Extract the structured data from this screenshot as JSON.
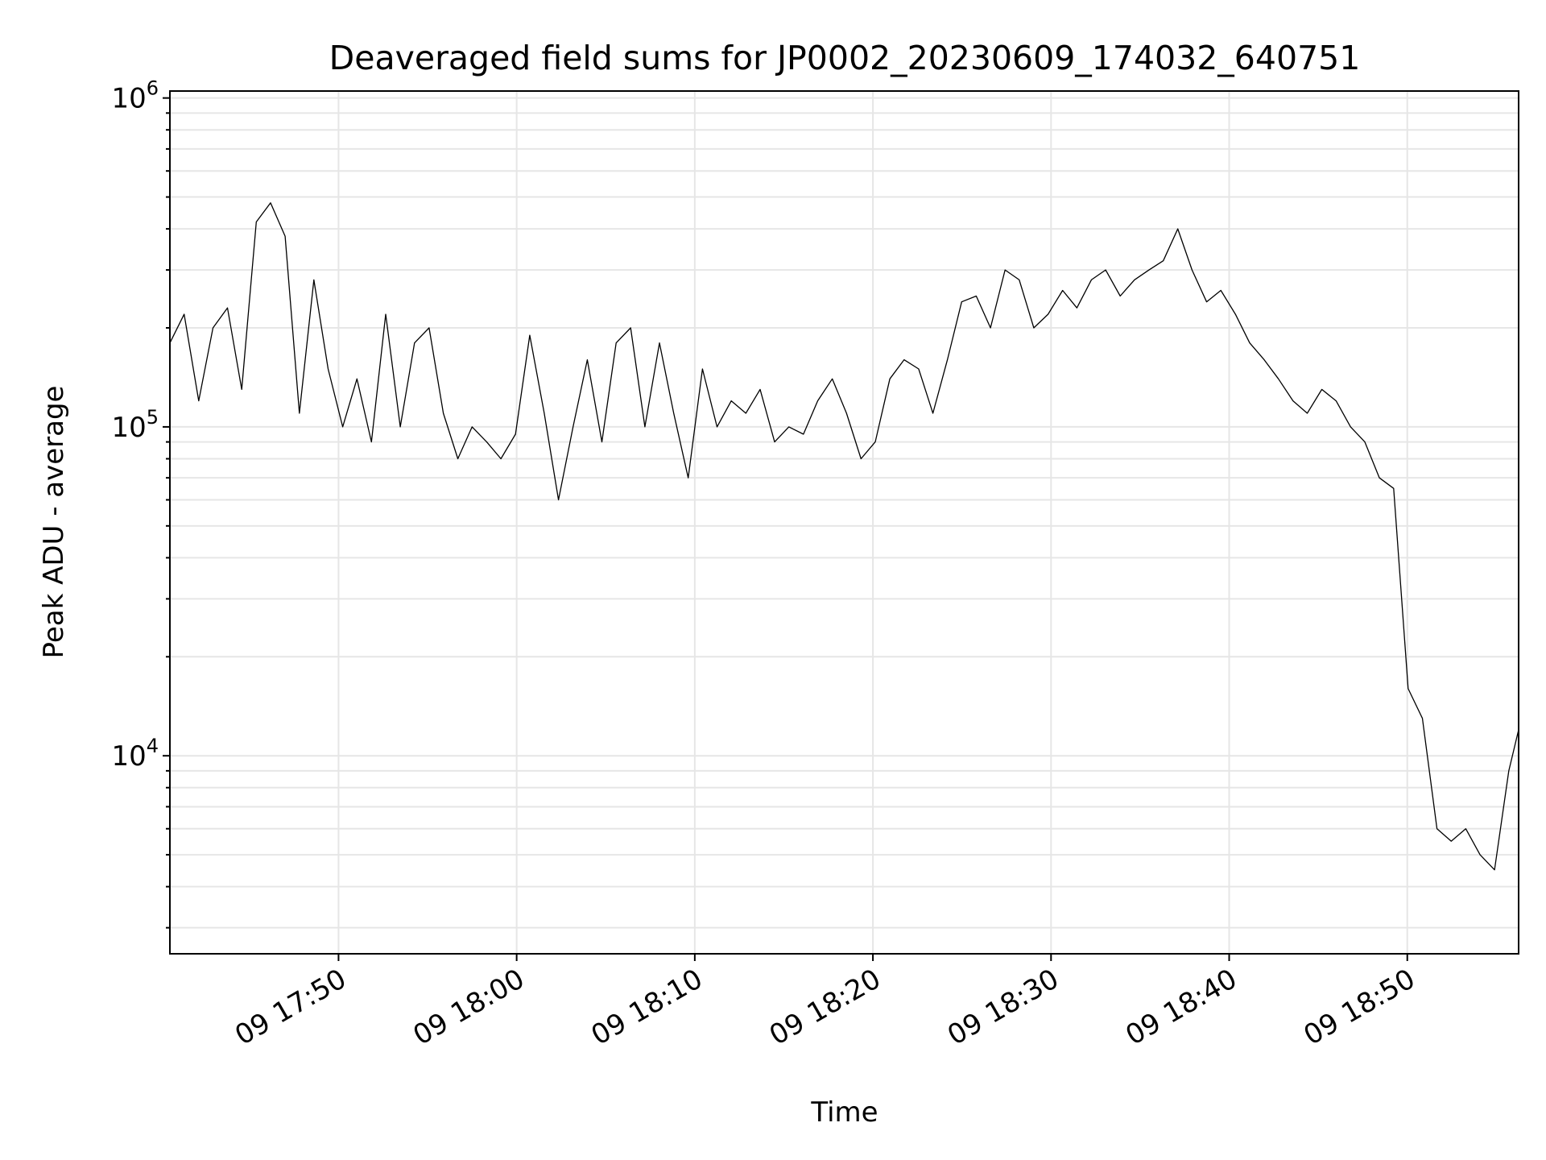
{
  "chart_data": {
    "type": "line",
    "title": "Deaveraged field sums for JP0002_20230609_174032_640751",
    "xlabel": "Time",
    "ylabel": "Peak ADU - average",
    "yscale": "log",
    "ylim": [
      2500,
      1050000
    ],
    "xlim": [
      "2023-06-09 17:40:32",
      "2023-06-09 18:56:15"
    ],
    "grid": true,
    "legend": "none",
    "line_color": "#000000",
    "grid_color": "#e6e6e6",
    "x_ticks": [
      {
        "value": "2023-06-09 17:50",
        "label": "09 17:50"
      },
      {
        "value": "2023-06-09 18:00",
        "label": "09 18:00"
      },
      {
        "value": "2023-06-09 18:10",
        "label": "09 18:10"
      },
      {
        "value": "2023-06-09 18:20",
        "label": "09 18:20"
      },
      {
        "value": "2023-06-09 18:30",
        "label": "09 18:30"
      },
      {
        "value": "2023-06-09 18:40",
        "label": "09 18:40"
      },
      {
        "value": "2023-06-09 18:50",
        "label": "09 18:50"
      }
    ],
    "y_ticks": [
      {
        "value": 10000,
        "base": "10",
        "exp": "4"
      },
      {
        "value": 100000,
        "base": "10",
        "exp": "5"
      },
      {
        "value": 1000000,
        "base": "10",
        "exp": "6"
      }
    ],
    "series": [
      {
        "x": [
          "2023-06-09 17:40:32",
          "2023-06-09 17:41:20",
          "2023-06-09 17:42:09",
          "2023-06-09 17:42:57",
          "2023-06-09 17:43:46",
          "2023-06-09 17:44:34",
          "2023-06-09 17:45:23",
          "2023-06-09 17:46:11",
          "2023-06-09 17:47:00",
          "2023-06-09 17:47:48",
          "2023-06-09 17:48:37",
          "2023-06-09 17:49:25",
          "2023-06-09 17:50:14",
          "2023-06-09 17:51:02",
          "2023-06-09 17:51:51",
          "2023-06-09 17:52:39",
          "2023-06-09 17:53:28",
          "2023-06-09 17:54:16",
          "2023-06-09 17:55:05",
          "2023-06-09 17:55:53",
          "2023-06-09 17:56:42",
          "2023-06-09 17:57:30",
          "2023-06-09 17:58:19",
          "2023-06-09 17:59:07",
          "2023-06-09 17:59:56",
          "2023-06-09 18:00:44",
          "2023-06-09 18:01:33",
          "2023-06-09 18:02:21",
          "2023-06-09 18:03:10",
          "2023-06-09 18:03:58",
          "2023-06-09 18:04:47",
          "2023-06-09 18:05:35",
          "2023-06-09 18:06:24",
          "2023-06-09 18:07:12",
          "2023-06-09 18:08:01",
          "2023-06-09 18:08:49",
          "2023-06-09 18:09:38",
          "2023-06-09 18:10:26",
          "2023-06-09 18:11:15",
          "2023-06-09 18:12:03",
          "2023-06-09 18:12:52",
          "2023-06-09 18:13:40",
          "2023-06-09 18:14:29",
          "2023-06-09 18:15:17",
          "2023-06-09 18:16:06",
          "2023-06-09 18:16:54",
          "2023-06-09 18:17:43",
          "2023-06-09 18:18:31",
          "2023-06-09 18:19:20",
          "2023-06-09 18:20:08",
          "2023-06-09 18:20:57",
          "2023-06-09 18:21:45",
          "2023-06-09 18:22:34",
          "2023-06-09 18:23:22",
          "2023-06-09 18:24:11",
          "2023-06-09 18:24:59",
          "2023-06-09 18:25:48",
          "2023-06-09 18:26:36",
          "2023-06-09 18:27:25",
          "2023-06-09 18:28:13",
          "2023-06-09 18:29:02",
          "2023-06-09 18:29:50",
          "2023-06-09 18:30:39",
          "2023-06-09 18:31:27",
          "2023-06-09 18:32:16",
          "2023-06-09 18:33:04",
          "2023-06-09 18:33:53",
          "2023-06-09 18:34:41",
          "2023-06-09 18:35:30",
          "2023-06-09 18:36:18",
          "2023-06-09 18:37:07",
          "2023-06-09 18:37:55",
          "2023-06-09 18:38:44",
          "2023-06-09 18:39:32",
          "2023-06-09 18:40:21",
          "2023-06-09 18:41:09",
          "2023-06-09 18:41:58",
          "2023-06-09 18:42:46",
          "2023-06-09 18:43:35",
          "2023-06-09 18:44:23",
          "2023-06-09 18:45:12",
          "2023-06-09 18:46:00",
          "2023-06-09 18:46:49",
          "2023-06-09 18:47:37",
          "2023-06-09 18:48:26",
          "2023-06-09 18:49:14",
          "2023-06-09 18:50:03",
          "2023-06-09 18:50:51",
          "2023-06-09 18:51:40",
          "2023-06-09 18:52:28",
          "2023-06-09 18:53:17",
          "2023-06-09 18:54:05",
          "2023-06-09 18:54:54",
          "2023-06-09 18:55:42",
          "2023-06-09 18:56:15"
        ],
        "y": [
          180000,
          220000,
          120000,
          200000,
          230000,
          130000,
          420000,
          480000,
          380000,
          110000,
          280000,
          150000,
          100000,
          140000,
          90000,
          220000,
          100000,
          180000,
          200000,
          110000,
          80000,
          100000,
          90000,
          80000,
          95000,
          190000,
          110000,
          60000,
          100000,
          160000,
          90000,
          180000,
          200000,
          100000,
          180000,
          110000,
          70000,
          150000,
          100000,
          120000,
          110000,
          130000,
          90000,
          100000,
          95000,
          120000,
          140000,
          110000,
          80000,
          90000,
          140000,
          160000,
          150000,
          110000,
          160000,
          240000,
          250000,
          200000,
          300000,
          280000,
          200000,
          220000,
          260000,
          230000,
          280000,
          300000,
          250000,
          280000,
          300000,
          320000,
          400000,
          300000,
          240000,
          260000,
          220000,
          180000,
          160000,
          140000,
          120000,
          110000,
          130000,
          120000,
          100000,
          90000,
          70000,
          65000,
          16000,
          13000,
          6000,
          5500,
          6000,
          5000,
          4500,
          9000,
          12000
        ]
      }
    ]
  }
}
